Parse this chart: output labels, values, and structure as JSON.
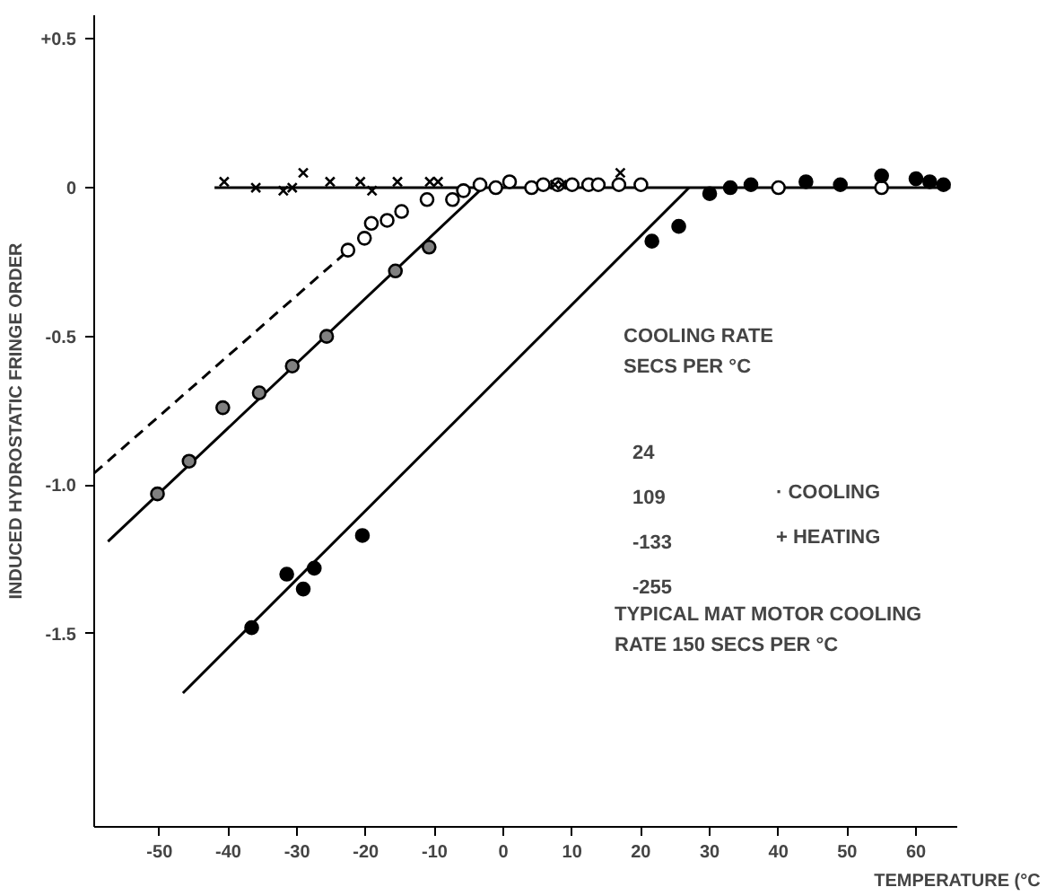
{
  "chart_data": {
    "type": "scatter",
    "xlabel": "TEMPERATURE (°C",
    "ylabel": "INDUCED HYDROSTATIC FRINGE ORDER",
    "xlim": [
      -59.5,
      66
    ],
    "ylim": [
      -2.15,
      0.58
    ],
    "xticks": [
      -50,
      -40,
      -30,
      -20,
      -10,
      0,
      10,
      20,
      30,
      40,
      50,
      60
    ],
    "yticks": [
      {
        "value": 0.5,
        "label": "+0.5"
      },
      0,
      -0.5,
      {
        "value": -1.0,
        "label": "-1.0"
      },
      -1.5
    ],
    "grid": false,
    "series": [
      {
        "type": "line",
        "line_style": "solid",
        "color": "#000000",
        "x": [
          -42,
          65
        ],
        "values": [
          0,
          0
        ]
      },
      {
        "type": "line",
        "line_style": "dashed",
        "color": "#000000",
        "x": [
          -59.5,
          -23
        ],
        "values": [
          -0.96,
          -0.22
        ]
      },
      {
        "type": "line",
        "line_style": "solid",
        "color": "#000000",
        "x": [
          -57.5,
          -3
        ],
        "values": [
          -1.19,
          0
        ]
      },
      {
        "type": "line",
        "line_style": "solid",
        "color": "#000000",
        "x": [
          -46.6,
          27
        ],
        "values": [
          -1.7,
          0
        ]
      },
      {
        "marker": "circle",
        "color": "#ffffff",
        "x": [
          -22.6,
          -20.2,
          -19.2,
          -16.9,
          -14.8,
          -11.1,
          -7.4,
          -5.8,
          -3.4,
          -1.1,
          0.9,
          4.1,
          5.8,
          7.9,
          10,
          12.4,
          13.8,
          16.8,
          20,
          40,
          55
        ],
        "values": [
          -0.21,
          -0.17,
          -0.12,
          -0.11,
          -0.08,
          -0.04,
          -0.04,
          -0.01,
          0.01,
          0,
          0.02,
          0,
          0.01,
          0.01,
          0.01,
          0.01,
          0.01,
          0.01,
          0.01,
          0,
          0
        ]
      },
      {
        "marker": "circle",
        "color": "#808080",
        "x": [
          -50.3,
          -45.7,
          -40.8,
          -35.5,
          -30.7,
          -25.7,
          -15.7,
          -10.8
        ],
        "values": [
          -1.03,
          -0.92,
          -0.74,
          -0.69,
          -0.6,
          -0.5,
          -0.28,
          -0.2
        ]
      },
      {
        "marker": "circle",
        "color": "#000000",
        "x": [
          -36.6,
          -31.5,
          -29.1,
          -27.5,
          -20.5,
          21.6,
          25.5,
          30,
          33,
          36,
          44,
          49,
          55,
          60,
          62,
          64
        ],
        "values": [
          -1.48,
          -1.3,
          -1.35,
          -1.28,
          -1.17,
          -0.18,
          -0.13,
          -0.02,
          0,
          0.01,
          0.02,
          0.01,
          0.04,
          0.03,
          0.02,
          0.01
        ]
      },
      {
        "marker": "cross",
        "color": "#000000",
        "x": [
          -40.6,
          -36,
          -32,
          -30.7,
          -29.1,
          -25.2,
          -20.8,
          -19.1,
          -15.4,
          -10.7,
          -9.5,
          7.5,
          8.5,
          17
        ],
        "values": [
          0.02,
          0,
          -0.01,
          0,
          0.05,
          0.02,
          0.02,
          -0.01,
          0.02,
          0.02,
          0.02,
          0.01,
          0.01,
          0.05
        ]
      }
    ],
    "annotations": [
      "COOLING RATE\nSECS PER °C",
      "24",
      "109",
      "-133",
      "-255",
      "· COOLING",
      "+ HEATING",
      "TYPICAL MAT MOTOR COOLING\nRATE 150 SECS PER °C"
    ]
  }
}
